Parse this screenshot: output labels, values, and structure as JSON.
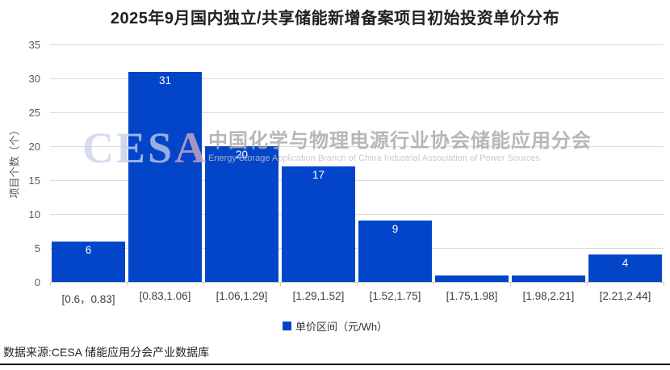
{
  "page": {
    "footer": "数据来源:CESA 储能应用分会产业数据库"
  },
  "watermark": {
    "logo_letters": [
      {
        "ch": "C",
        "color": "#ced3ec"
      },
      {
        "ch": "E",
        "color": "#c8cfeb"
      },
      {
        "ch": "S",
        "color": "#bfc8ea"
      },
      {
        "ch": "A",
        "color": "#cfa8c0"
      }
    ],
    "cn": "中国化学与物理电源行业协会储能应用分会",
    "en": "Energy Storage Application Branch of China Industrial Association of Power Sources"
  },
  "chart_data": {
    "type": "bar",
    "title": "2025年9月国内独立/共享储能新增备案项目初始投资单价分布",
    "categories": [
      "[0.6，0.83]",
      "[0.83,1.06]",
      "[1.06,1.29]",
      "[1.29,1.52]",
      "[1.52,1.75]",
      "[1.75,1.98]",
      "[1.98,2.21]",
      "[2.21,2.44]"
    ],
    "values": [
      6,
      31,
      20,
      17,
      9,
      1,
      1,
      4
    ],
    "xlabel": "",
    "ylabel": "项目个数（个）",
    "ylim": [
      0,
      35
    ],
    "ytick_step": 5,
    "grid": true,
    "legend": "单价区间（元/Wh）",
    "legend_position": "bottom",
    "bar_color": "#0345C9",
    "bar_value_label_color": "#ffffff"
  }
}
